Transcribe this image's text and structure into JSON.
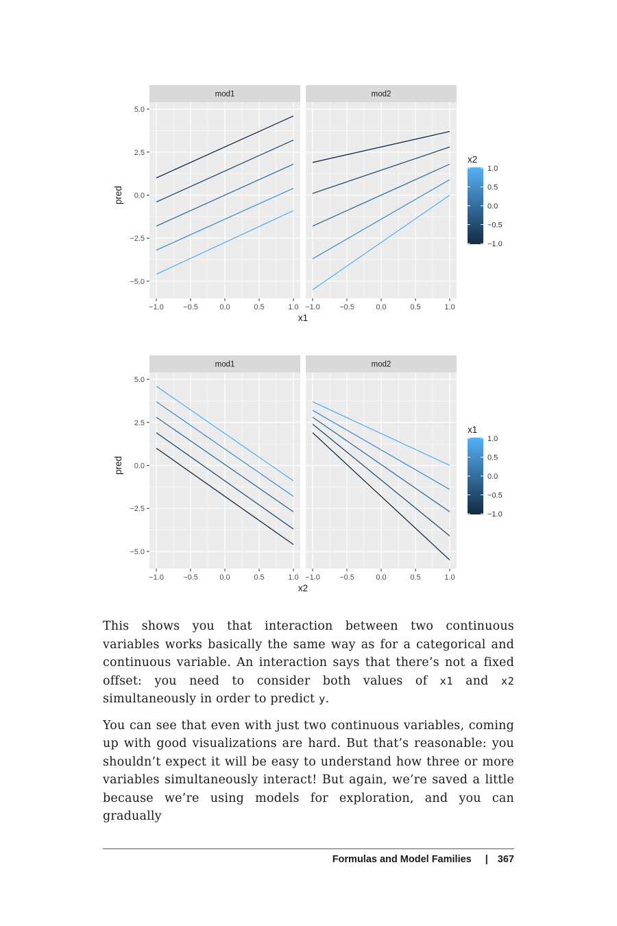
{
  "chart_data": [
    {
      "type": "line",
      "panels": [
        "mod1",
        "mod2"
      ],
      "xlabel": "x1",
      "ylabel": "pred",
      "xlim": [
        -1.0,
        1.0
      ],
      "ylim": [
        -6.0,
        5.4
      ],
      "xticks": [
        "-1.0",
        "-0.5",
        "0.0",
        "0.5",
        "1.0"
      ],
      "yticks": [
        "5.0",
        "2.5",
        "0.0",
        "-2.5",
        "-5.0"
      ],
      "ytick_values": [
        5.0,
        2.5,
        0.0,
        -2.5,
        -5.0
      ],
      "xtick_values": [
        -1.0,
        -0.5,
        0.0,
        0.5,
        1.0
      ],
      "legend": {
        "title": "x2",
        "labels": [
          "1.0",
          "0.5",
          "0.0",
          "-0.5",
          "-1.0"
        ],
        "values": [
          1.0,
          0.5,
          0.0,
          -0.5,
          -1.0
        ],
        "position": "right"
      },
      "grid": true,
      "series": [
        {
          "panel": "mod1",
          "color_value": -1.0,
          "x": [
            -1.0,
            1.0
          ],
          "y": [
            1.0,
            4.6
          ]
        },
        {
          "panel": "mod1",
          "color_value": -0.5,
          "x": [
            -1.0,
            1.0
          ],
          "y": [
            -0.4,
            3.2
          ]
        },
        {
          "panel": "mod1",
          "color_value": 0.0,
          "x": [
            -1.0,
            1.0
          ],
          "y": [
            -1.8,
            1.8
          ]
        },
        {
          "panel": "mod1",
          "color_value": 0.5,
          "x": [
            -1.0,
            1.0
          ],
          "y": [
            -3.2,
            0.4
          ]
        },
        {
          "panel": "mod1",
          "color_value": 1.0,
          "x": [
            -1.0,
            1.0
          ],
          "y": [
            -4.6,
            -0.9
          ]
        },
        {
          "panel": "mod2",
          "color_value": -1.0,
          "x": [
            -1.0,
            1.0
          ],
          "y": [
            1.9,
            3.7
          ]
        },
        {
          "panel": "mod2",
          "color_value": -0.5,
          "x": [
            -1.0,
            1.0
          ],
          "y": [
            0.1,
            2.8
          ]
        },
        {
          "panel": "mod2",
          "color_value": 0.0,
          "x": [
            -1.0,
            1.0
          ],
          "y": [
            -1.8,
            1.8
          ]
        },
        {
          "panel": "mod2",
          "color_value": 0.5,
          "x": [
            -1.0,
            1.0
          ],
          "y": [
            -3.7,
            0.9
          ]
        },
        {
          "panel": "mod2",
          "color_value": 1.0,
          "x": [
            -1.0,
            1.0
          ],
          "y": [
            -5.5,
            0.0
          ]
        }
      ]
    },
    {
      "type": "line",
      "panels": [
        "mod1",
        "mod2"
      ],
      "xlabel": "x2",
      "ylabel": "pred",
      "xlim": [
        -1.0,
        1.0
      ],
      "ylim": [
        -6.0,
        5.4
      ],
      "xticks": [
        "-1.0",
        "-0.5",
        "0.0",
        "0.5",
        "1.0"
      ],
      "yticks": [
        "5.0",
        "2.5",
        "0.0",
        "-2.5",
        "-5.0"
      ],
      "ytick_values": [
        5.0,
        2.5,
        0.0,
        -2.5,
        -5.0
      ],
      "xtick_values": [
        -1.0,
        -0.5,
        0.0,
        0.5,
        1.0
      ],
      "legend": {
        "title": "x1",
        "labels": [
          "1.0",
          "0.5",
          "0.0",
          "-0.5",
          "-1.0"
        ],
        "values": [
          1.0,
          0.5,
          0.0,
          -0.5,
          -1.0
        ],
        "position": "right"
      },
      "grid": true,
      "series": [
        {
          "panel": "mod1",
          "color_value": 1.0,
          "x": [
            -1.0,
            1.0
          ],
          "y": [
            4.6,
            -0.9
          ]
        },
        {
          "panel": "mod1",
          "color_value": 0.5,
          "x": [
            -1.0,
            1.0
          ],
          "y": [
            3.7,
            -1.8
          ]
        },
        {
          "panel": "mod1",
          "color_value": 0.0,
          "x": [
            -1.0,
            1.0
          ],
          "y": [
            2.8,
            -2.7
          ]
        },
        {
          "panel": "mod1",
          "color_value": -0.5,
          "x": [
            -1.0,
            1.0
          ],
          "y": [
            1.9,
            -3.7
          ]
        },
        {
          "panel": "mod1",
          "color_value": -1.0,
          "x": [
            -1.0,
            1.0
          ],
          "y": [
            1.0,
            -4.6
          ]
        },
        {
          "panel": "mod2",
          "color_value": 1.0,
          "x": [
            -1.0,
            1.0
          ],
          "y": [
            3.7,
            0.0
          ]
        },
        {
          "panel": "mod2",
          "color_value": 0.5,
          "x": [
            -1.0,
            1.0
          ],
          "y": [
            3.2,
            -1.4
          ]
        },
        {
          "panel": "mod2",
          "color_value": 0.0,
          "x": [
            -1.0,
            1.0
          ],
          "y": [
            2.8,
            -2.7
          ]
        },
        {
          "panel": "mod2",
          "color_value": -0.5,
          "x": [
            -1.0,
            1.0
          ],
          "y": [
            2.4,
            -4.1
          ]
        },
        {
          "panel": "mod2",
          "color_value": -1.0,
          "x": [
            -1.0,
            1.0
          ],
          "y": [
            1.9,
            -5.5
          ]
        }
      ]
    }
  ],
  "colors": {
    "low": "#132B43",
    "high": "#56B1F7",
    "panel_bg": "#EBEBEB",
    "strip_bg": "#D9D9D9",
    "grid": "#FFFFFF",
    "footer_rule": "#B0343C"
  },
  "text": {
    "para1_a": "This shows you that interaction between two continuous variables works basically the same way as for a categorical and continuous variable. An interaction says that there’s not a fixed offset: you need to consider both values of ",
    "para1_code1": "x1",
    "para1_b": " and ",
    "para1_code2": "x2",
    "para1_c": " simultaneously in order to predict ",
    "para1_code3": "y",
    "para1_d": ".",
    "para2": "You can see that even with just two continuous variables, coming up with good visualizations are hard. But that’s reasonable: you shouldn’t expect it will be easy to understand how three or more variables simultaneously interact! But again, we’re saved a little because we’re using models for exploration, and you can gradually"
  },
  "footer": {
    "section": "Formulas and Model Families",
    "separator": "|",
    "page_number": "367"
  }
}
